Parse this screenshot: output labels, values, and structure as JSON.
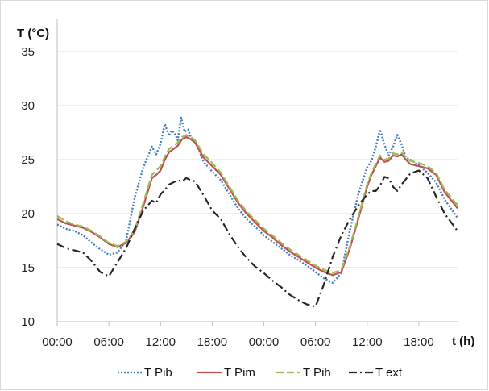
{
  "chart_data": {
    "type": "line",
    "xlabel": "t (h)",
    "ylabel": "T (°C)",
    "ylim": [
      10,
      38
    ],
    "yticks": [
      10,
      15,
      20,
      25,
      30,
      35
    ],
    "xlim": [
      0,
      46.5
    ],
    "xticks": [
      0,
      6,
      12,
      18,
      24,
      30,
      36,
      42
    ],
    "xtick_labels": [
      "00:00",
      "06:00",
      "12:00",
      "18:00",
      "00:00",
      "06:00",
      "12:00",
      "18:00"
    ],
    "grid": "horizontal",
    "legend_position": "bottom",
    "series": [
      {
        "name": "T Pib",
        "color": "#4a7ebb",
        "dash": "dotted",
        "x": [
          0,
          1,
          2,
          3,
          4,
          5,
          6,
          7,
          8,
          9,
          10,
          11,
          11.5,
          12,
          12.5,
          13,
          13.3,
          13.6,
          14,
          14.4,
          14.8,
          15.2,
          15.6,
          16,
          17,
          18,
          19,
          20,
          21,
          22,
          23,
          24,
          25,
          26,
          27,
          28,
          29,
          30,
          31,
          32,
          33,
          34,
          35,
          36,
          36.5,
          37,
          37.5,
          38,
          38.5,
          39,
          39.5,
          40,
          40.5,
          41,
          42,
          43,
          44,
          45,
          46.5
        ],
        "y": [
          19.0,
          18.6,
          18.4,
          18.0,
          17.3,
          16.7,
          16.2,
          16.4,
          17.5,
          21.5,
          24.3,
          26.2,
          25.5,
          26.5,
          28.3,
          27.2,
          27.7,
          27.5,
          26.8,
          28.9,
          27.6,
          27.8,
          26.9,
          26.8,
          24.8,
          23.9,
          23.1,
          21.8,
          20.5,
          19.5,
          18.8,
          18.0,
          17.4,
          16.8,
          16.2,
          15.7,
          15.2,
          14.6,
          14.0,
          13.6,
          14.5,
          18.5,
          21.9,
          24.3,
          24.9,
          26.2,
          27.8,
          26.4,
          25.4,
          26.2,
          27.3,
          26.4,
          25.2,
          25.0,
          24.5,
          23.8,
          22.9,
          21.3,
          19.6
        ]
      },
      {
        "name": "T Pim",
        "color": "#c0504d",
        "dash": "solid",
        "x": [
          0,
          1,
          2,
          3,
          4,
          5,
          6,
          7,
          8,
          9,
          10,
          11,
          11.5,
          12,
          12.5,
          13,
          13.5,
          14,
          14.5,
          15,
          15.5,
          16,
          17,
          18,
          19,
          20,
          21,
          22,
          23,
          24,
          25,
          26,
          27,
          28,
          29,
          30,
          31,
          32,
          33,
          34,
          35,
          36,
          36.5,
          37,
          37.5,
          38,
          38.5,
          39,
          39.5,
          40,
          40.5,
          41,
          42,
          43,
          44,
          45,
          46.5
        ],
        "y": [
          19.5,
          19.1,
          18.9,
          18.7,
          18.3,
          17.8,
          17.2,
          16.9,
          17.3,
          18.3,
          20.7,
          23.3,
          23.6,
          24.0,
          25.0,
          25.7,
          26.0,
          26.3,
          26.9,
          27.1,
          26.9,
          26.6,
          25.2,
          24.4,
          23.6,
          22.3,
          21.0,
          20.0,
          19.2,
          18.4,
          17.8,
          17.1,
          16.5,
          16.0,
          15.5,
          15.0,
          14.6,
          14.3,
          14.6,
          16.8,
          19.6,
          22.5,
          23.6,
          24.4,
          25.2,
          24.8,
          24.9,
          25.4,
          25.3,
          25.5,
          25.0,
          24.6,
          24.4,
          24.2,
          23.6,
          22.0,
          20.5
        ]
      },
      {
        "name": "T Pih",
        "color": "#9bbb59",
        "dash": "dashed",
        "x": [
          0,
          1,
          2,
          3,
          4,
          5,
          6,
          7,
          8,
          9,
          10,
          11,
          11.5,
          12,
          12.5,
          13,
          13.5,
          14,
          14.5,
          15,
          15.5,
          16,
          17,
          18,
          19,
          20,
          21,
          22,
          23,
          24,
          25,
          26,
          27,
          28,
          29,
          30,
          31,
          32,
          33,
          34,
          35,
          36,
          36.5,
          37,
          37.5,
          38,
          38.5,
          39,
          39.5,
          40,
          40.5,
          41,
          42,
          43,
          44,
          45,
          46.5
        ],
        "y": [
          19.8,
          19.3,
          19.0,
          18.8,
          18.4,
          17.9,
          17.3,
          17.0,
          17.4,
          18.5,
          21.0,
          23.6,
          24.0,
          24.4,
          25.3,
          26.0,
          26.3,
          26.6,
          27.1,
          27.3,
          27.1,
          26.8,
          25.5,
          24.7,
          23.8,
          22.5,
          21.2,
          20.2,
          19.4,
          18.6,
          18.0,
          17.3,
          16.7,
          16.2,
          15.7,
          15.2,
          14.8,
          14.5,
          14.8,
          17.0,
          19.8,
          22.7,
          23.8,
          24.6,
          25.4,
          25.0,
          25.1,
          25.6,
          25.5,
          25.7,
          25.2,
          24.9,
          24.7,
          24.4,
          23.8,
          22.2,
          20.8
        ]
      },
      {
        "name": "T ext",
        "color": "#262626",
        "dash": "dashdot",
        "x": [
          0,
          1,
          2,
          3,
          4,
          5,
          6,
          7,
          8,
          9,
          10,
          11,
          11.5,
          12,
          12.5,
          13,
          13.5,
          14,
          14.5,
          15,
          15.5,
          16,
          17,
          18,
          19,
          20,
          21,
          22,
          23,
          24,
          25,
          26,
          27,
          28,
          29,
          30,
          31,
          32,
          33,
          34,
          35,
          36,
          36.5,
          37,
          37.5,
          38,
          38.5,
          39,
          39.5,
          40,
          40.5,
          41,
          42,
          43,
          44,
          45,
          46.5
        ],
        "y": [
          17.2,
          16.8,
          16.6,
          16.4,
          15.6,
          14.6,
          14.2,
          15.5,
          16.8,
          18.6,
          20.3,
          21.2,
          21.0,
          21.8,
          22.2,
          22.7,
          22.9,
          23.1,
          23.0,
          23.3,
          23.1,
          23.0,
          21.7,
          20.3,
          19.5,
          18.1,
          16.9,
          15.9,
          15.1,
          14.5,
          13.8,
          13.2,
          12.5,
          12.0,
          11.6,
          11.4,
          13.5,
          16.0,
          18.0,
          19.5,
          20.8,
          21.8,
          22.1,
          22.1,
          22.6,
          23.4,
          23.3,
          22.5,
          22.1,
          22.7,
          23.2,
          23.7,
          24.0,
          23.3,
          21.6,
          20.0,
          18.4
        ]
      }
    ]
  }
}
